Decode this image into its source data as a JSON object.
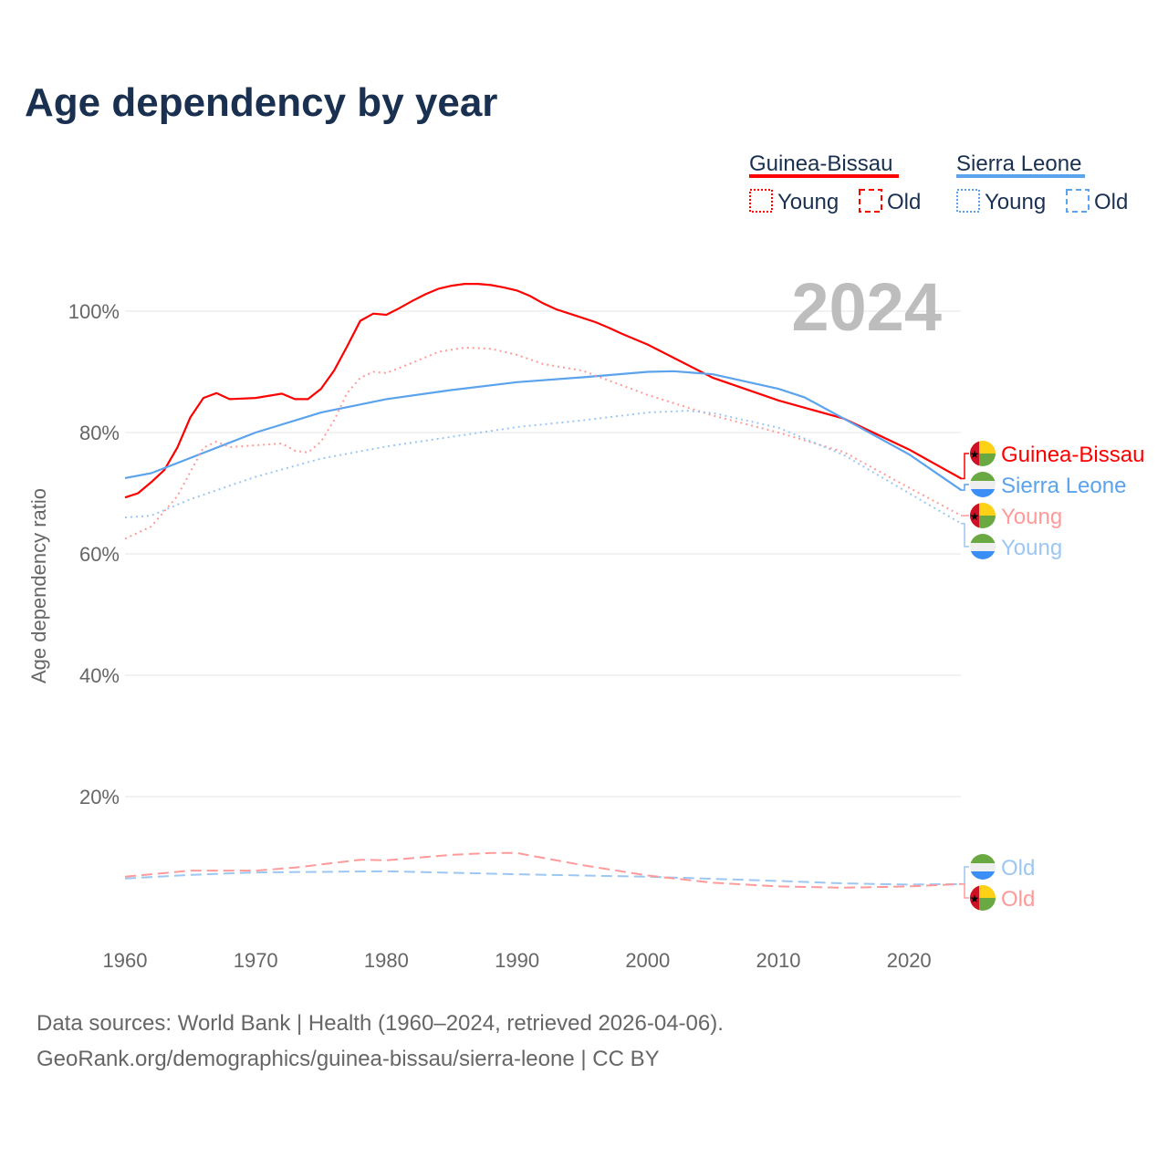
{
  "title": "Age dependency by year",
  "footer": {
    "line1": "Data sources: World Bank | Health (1960–2024, retrieved 2026-04-06).",
    "line2": "GeoRank.org/demographics/guinea-bissau/sierra-leone | CC BY"
  },
  "legend": {
    "countries": [
      {
        "name": "Guinea-Bissau",
        "color": "#ff0000",
        "young": "Young",
        "old": "Old"
      },
      {
        "name": "Sierra Leone",
        "color": "#5ba3ec",
        "young": "Young",
        "old": "Old"
      }
    ]
  },
  "chart_data": {
    "type": "line",
    "title": "Age dependency by year",
    "year_label": "2024",
    "xlabel": "",
    "ylabel": "Age dependency ratio",
    "xlim": [
      1960,
      2024
    ],
    "ylim": [
      0,
      110
    ],
    "xticks": [
      1960,
      1970,
      1980,
      1990,
      2000,
      2010,
      2020
    ],
    "yticks": [
      20,
      40,
      60,
      80,
      100
    ],
    "ytick_labels": [
      "20%",
      "40%",
      "60%",
      "80%",
      "100%"
    ],
    "grid": true,
    "series": [
      {
        "name": "Guinea-Bissau",
        "label": "Guinea-Bissau",
        "country": "gb",
        "style": "solid",
        "color": "#ff0000",
        "x": [
          1960,
          1961,
          1962,
          1963,
          1964,
          1965,
          1966,
          1967,
          1968,
          1970,
          1972,
          1973,
          1974,
          1975,
          1976,
          1977,
          1978,
          1979,
          1980,
          1981,
          1982,
          1983,
          1984,
          1985,
          1986,
          1987,
          1988,
          1989,
          1990,
          1991,
          1992,
          1993,
          1995,
          1996,
          1997,
          1998,
          2000,
          2005,
          2010,
          2015,
          2020,
          2024
        ],
        "y": [
          69.3,
          70,
          71.8,
          73.8,
          77.5,
          82.5,
          85.7,
          86.5,
          85.5,
          85.7,
          86.4,
          85.5,
          85.5,
          87.2,
          90.2,
          94.2,
          98.4,
          99.6,
          99.4,
          100.5,
          101.7,
          102.8,
          103.7,
          104.2,
          104.5,
          104.5,
          104.3,
          103.9,
          103.4,
          102.5,
          101.3,
          100.3,
          98.9,
          98.2,
          97.3,
          96.3,
          94.5,
          89,
          85.3,
          82.3,
          77.2,
          72.4
        ]
      },
      {
        "name": "Sierra Leone",
        "label": "Sierra Leone",
        "country": "sl",
        "style": "solid",
        "color": "#5ba3ec",
        "x": [
          1960,
          1962,
          1965,
          1970,
          1975,
          1980,
          1985,
          1990,
          1995,
          2000,
          2002,
          2005,
          2010,
          2012,
          2015,
          2020,
          2024
        ],
        "y": [
          72.5,
          73.3,
          75.8,
          80,
          83.3,
          85.5,
          87,
          88.3,
          89.1,
          90,
          90.1,
          89.6,
          87.2,
          85.8,
          82.3,
          76.4,
          70.5
        ]
      },
      {
        "name": "Guinea-Bissau Young",
        "label": "Young",
        "country": "gb",
        "style": "dotted",
        "color": "#ff9a9a",
        "x": [
          1960,
          1962,
          1964,
          1966,
          1967,
          1968,
          1972,
          1973,
          1974,
          1975,
          1976,
          1977,
          1978,
          1979,
          1980,
          1982,
          1984,
          1986,
          1988,
          1990,
          1992,
          1995,
          2000,
          2005,
          2010,
          2015,
          2020,
          2024
        ],
        "y": [
          62.5,
          64.5,
          69.5,
          77.5,
          78.5,
          77.6,
          78.2,
          77,
          76.7,
          78.5,
          82,
          86.5,
          89,
          90,
          89.8,
          91.5,
          93.3,
          94,
          93.8,
          92.8,
          91.3,
          90.2,
          86.2,
          82.8,
          80,
          76.8,
          70.9,
          66.3
        ]
      },
      {
        "name": "Sierra Leone Young",
        "label": "Young",
        "country": "sl",
        "style": "dotted",
        "color": "#9cc7f2",
        "x": [
          1960,
          1962,
          1965,
          1970,
          1975,
          1980,
          1985,
          1990,
          1995,
          2000,
          2003,
          2005,
          2010,
          2015,
          2020,
          2024
        ],
        "y": [
          66,
          66.3,
          69,
          72.7,
          75.7,
          77.7,
          79.3,
          80.9,
          82,
          83.3,
          83.6,
          83.2,
          80.8,
          76.3,
          70,
          65
        ]
      },
      {
        "name": "Sierra Leone Old",
        "label": "Old",
        "country": "sl",
        "style": "dashed",
        "color": "#9cc7f2",
        "x": [
          1960,
          1965,
          1970,
          1980,
          1990,
          2000,
          2010,
          2015,
          2020,
          2024
        ],
        "y": [
          6.5,
          7.1,
          7.5,
          7.7,
          7.2,
          6.8,
          6.1,
          5.7,
          5.5,
          5.6
        ]
      },
      {
        "name": "Guinea-Bissau Old",
        "label": "Old",
        "country": "gb",
        "style": "dashed",
        "color": "#ff9a9a",
        "x": [
          1960,
          1965,
          1970,
          1973,
          1978,
          1980,
          1985,
          1988,
          1990,
          1991,
          1995,
          2000,
          2005,
          2010,
          2015,
          2020,
          2024
        ],
        "y": [
          6.8,
          7.8,
          7.8,
          8.3,
          9.6,
          9.5,
          10.4,
          10.7,
          10.7,
          10.3,
          8.7,
          7,
          5.8,
          5.2,
          5,
          5.2,
          5.6
        ]
      }
    ]
  }
}
